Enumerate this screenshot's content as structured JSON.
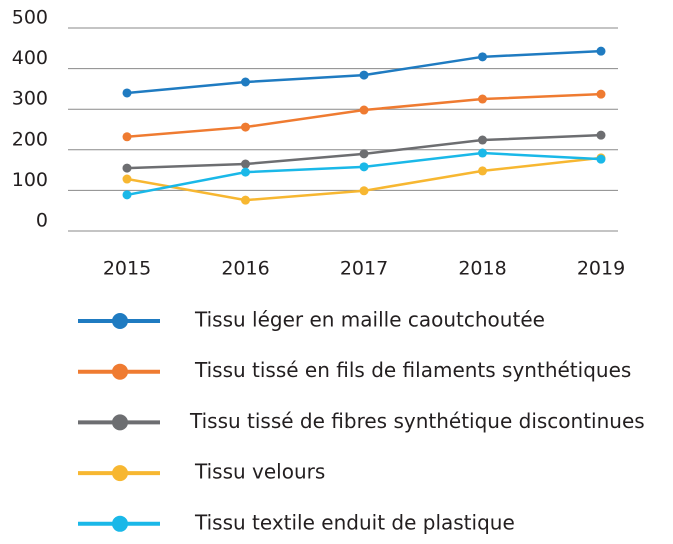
{
  "chart_data": {
    "type": "line",
    "categories": [
      "2015",
      "2016",
      "2017",
      "2018",
      "2019"
    ],
    "series": [
      {
        "name": "Tissu léger en maille caoutchoutée",
        "color": "#1f7bc1",
        "values": [
          340,
          367,
          384,
          429,
          443
        ]
      },
      {
        "name": "Tissu tissé en fils de filaments synthétiques",
        "color": "#ef7b31",
        "values": [
          232,
          256,
          298,
          325,
          337
        ]
      },
      {
        "name": "Tissu tissé de fibres synthétique discontinues",
        "color": "#6d6e71",
        "values": [
          155,
          165,
          190,
          224,
          236
        ]
      },
      {
        "name": "Tissu velours",
        "color": "#f7b731",
        "values": [
          128,
          76,
          99,
          148,
          180
        ]
      },
      {
        "name": "Tissu textile enduit de plastique",
        "color": "#1ab8e8",
        "values": [
          89,
          145,
          158,
          192,
          177
        ]
      }
    ],
    "ylim": [
      0,
      500
    ],
    "yticks": [
      0,
      100,
      200,
      300,
      400,
      500
    ],
    "grid": true,
    "legend": "bottom"
  }
}
